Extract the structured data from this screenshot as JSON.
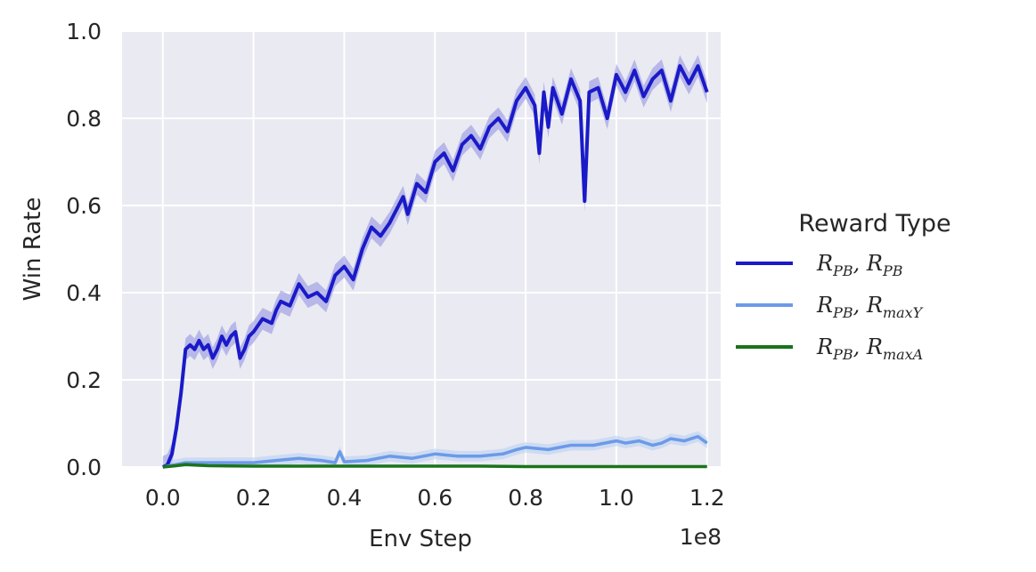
{
  "chart_data": {
    "type": "line",
    "title": "",
    "xlabel": "Env Step",
    "ylabel": "Win Rate",
    "x_offset_text": "1e8",
    "xlim": [
      -0.09,
      1.23
    ],
    "ylim": [
      0.0,
      1.0
    ],
    "x_ticks": [
      "0.0",
      "0.2",
      "0.4",
      "0.6",
      "0.8",
      "1.0",
      "1.2"
    ],
    "y_ticks": [
      "0.0",
      "0.2",
      "0.4",
      "0.6",
      "0.8",
      "1.0"
    ],
    "grid": true,
    "legend": {
      "title": "Reward Type",
      "placement": "right-outside"
    },
    "series": [
      {
        "name": "R_PB, R_PB",
        "label_main": "R",
        "label_sub1": "PB",
        "label_sep": ", R",
        "label_sub2": "PB",
        "color": "#1a1ac8",
        "band_color": "#8c8ce0",
        "x": [
          0.0,
          0.01,
          0.02,
          0.03,
          0.04,
          0.05,
          0.06,
          0.07,
          0.08,
          0.09,
          0.1,
          0.11,
          0.12,
          0.13,
          0.14,
          0.15,
          0.16,
          0.17,
          0.18,
          0.19,
          0.2,
          0.22,
          0.24,
          0.25,
          0.26,
          0.28,
          0.3,
          0.32,
          0.34,
          0.36,
          0.38,
          0.4,
          0.42,
          0.44,
          0.46,
          0.48,
          0.5,
          0.52,
          0.53,
          0.54,
          0.56,
          0.58,
          0.6,
          0.62,
          0.64,
          0.66,
          0.68,
          0.7,
          0.72,
          0.74,
          0.76,
          0.78,
          0.8,
          0.82,
          0.83,
          0.84,
          0.85,
          0.86,
          0.88,
          0.9,
          0.92,
          0.93,
          0.94,
          0.96,
          0.98,
          1.0,
          1.02,
          1.04,
          1.06,
          1.08,
          1.1,
          1.12,
          1.14,
          1.16,
          1.18,
          1.2
        ],
        "y": [
          0.0,
          0.005,
          0.03,
          0.09,
          0.17,
          0.27,
          0.28,
          0.27,
          0.29,
          0.27,
          0.28,
          0.25,
          0.27,
          0.3,
          0.28,
          0.3,
          0.31,
          0.25,
          0.27,
          0.3,
          0.31,
          0.34,
          0.33,
          0.36,
          0.38,
          0.37,
          0.42,
          0.39,
          0.4,
          0.38,
          0.44,
          0.46,
          0.43,
          0.5,
          0.55,
          0.53,
          0.56,
          0.6,
          0.62,
          0.58,
          0.65,
          0.63,
          0.7,
          0.72,
          0.68,
          0.74,
          0.76,
          0.73,
          0.78,
          0.8,
          0.77,
          0.84,
          0.87,
          0.83,
          0.72,
          0.86,
          0.78,
          0.87,
          0.81,
          0.89,
          0.84,
          0.61,
          0.86,
          0.87,
          0.8,
          0.9,
          0.86,
          0.91,
          0.85,
          0.89,
          0.91,
          0.84,
          0.92,
          0.88,
          0.92,
          0.86
        ]
      },
      {
        "name": "R_PB, R_maxY",
        "label_main": "R",
        "label_sub1": "PB",
        "label_sep": ", R",
        "label_sub2": "maxY",
        "color": "#6c9ae8",
        "band_color": "#b4cdf2",
        "x": [
          0.0,
          0.05,
          0.1,
          0.15,
          0.2,
          0.25,
          0.3,
          0.35,
          0.38,
          0.39,
          0.4,
          0.45,
          0.5,
          0.55,
          0.6,
          0.65,
          0.7,
          0.75,
          0.78,
          0.8,
          0.85,
          0.9,
          0.95,
          1.0,
          1.02,
          1.05,
          1.08,
          1.1,
          1.12,
          1.15,
          1.18,
          1.2
        ],
        "y": [
          0.0,
          0.01,
          0.01,
          0.01,
          0.01,
          0.015,
          0.02,
          0.015,
          0.01,
          0.035,
          0.012,
          0.015,
          0.025,
          0.02,
          0.03,
          0.025,
          0.025,
          0.03,
          0.04,
          0.045,
          0.04,
          0.05,
          0.05,
          0.06,
          0.055,
          0.06,
          0.05,
          0.055,
          0.065,
          0.06,
          0.07,
          0.055
        ]
      },
      {
        "name": "R_PB, R_maxA",
        "label_main": "R",
        "label_sub1": "PB",
        "label_sep": ", R",
        "label_sub2": "maxA",
        "color": "#1a731a",
        "band_color": "#8fbf8f",
        "x": [
          0.0,
          0.03,
          0.05,
          0.08,
          0.1,
          0.2,
          0.3,
          0.4,
          0.5,
          0.6,
          0.7,
          0.8,
          0.9,
          1.0,
          1.1,
          1.2
        ],
        "y": [
          0.0,
          0.003,
          0.006,
          0.004,
          0.003,
          0.002,
          0.002,
          0.002,
          0.002,
          0.002,
          0.002,
          0.001,
          0.001,
          0.001,
          0.001,
          0.001
        ]
      }
    ]
  }
}
